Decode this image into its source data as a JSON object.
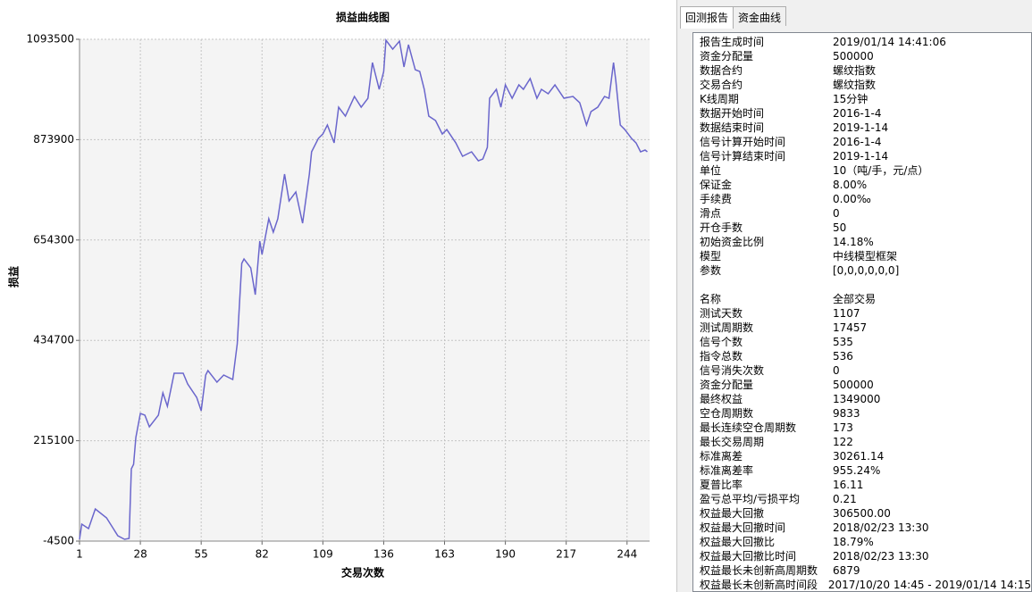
{
  "chart_data": {
    "type": "line",
    "title": "损益曲线图",
    "x_label": "交易次数",
    "y_label": "损益",
    "color": "#6a66cc",
    "grid": true,
    "xlim": [
      1,
      254
    ],
    "xticks": [
      1,
      28,
      55,
      82,
      109,
      136,
      163,
      190,
      217,
      244
    ],
    "ylim": [
      -4500,
      1093500
    ],
    "yticks": [
      -4500,
      215100,
      434700,
      654300,
      873900,
      1093500
    ],
    "x": [
      1,
      2,
      5,
      8,
      13,
      18,
      21,
      23,
      24,
      25,
      26,
      28,
      30,
      32,
      36,
      38,
      40,
      43,
      47,
      49,
      53,
      55,
      57,
      58,
      62,
      65,
      69,
      71,
      73,
      74,
      77,
      79,
      81,
      82,
      85,
      87,
      89,
      92,
      94,
      97,
      100,
      103,
      104,
      107,
      109,
      111,
      114,
      116,
      119,
      123,
      126,
      129,
      131,
      134,
      136,
      137,
      140,
      143,
      145,
      147,
      150,
      152,
      154,
      156,
      159,
      162,
      164,
      168,
      171,
      175,
      178,
      180,
      182,
      183,
      186,
      188,
      190,
      193,
      196,
      198,
      201,
      204,
      206,
      209,
      212,
      216,
      220,
      223,
      226,
      228,
      231,
      234,
      236,
      238,
      239,
      241,
      243,
      246,
      248,
      250,
      252,
      253
    ],
    "values": [
      -600,
      32600,
      22900,
      65800,
      46300,
      7200,
      -600,
      1400,
      153700,
      163500,
      222100,
      274900,
      271000,
      245600,
      271000,
      319800,
      290500,
      362800,
      362800,
      339300,
      310000,
      280700,
      358900,
      368600,
      343200,
      358900,
      349100,
      427200,
      603100,
      612800,
      593300,
      534700,
      651900,
      622600,
      700800,
      671400,
      700800,
      798400,
      739800,
      759400,
      691000,
      798400,
      847300,
      876600,
      886300,
      905900,
      866800,
      944900,
      925400,
      968400,
      944900,
      964500,
      1042600,
      984000,
      1023100,
      1091500,
      1071900,
      1089500,
      1032900,
      1081700,
      1027000,
      1023100,
      984000,
      925400,
      915600,
      886300,
      896100,
      866800,
      837500,
      847300,
      827700,
      831600,
      857000,
      964500,
      984000,
      944900,
      993800,
      964500,
      993800,
      984000,
      1007500,
      964500,
      984000,
      974300,
      993800,
      964500,
      968400,
      954700,
      905900,
      935200,
      944900,
      968400,
      964500,
      1042600,
      1003600,
      905900,
      896100,
      876600,
      866800,
      847300,
      851200,
      847300
    ]
  },
  "report": {
    "tabs": [
      "回测报告",
      "资金曲线"
    ],
    "sections": [
      [
        [
          "报告生成时间",
          "2019/01/14 14:41:06"
        ],
        [
          "资金分配量",
          "500000"
        ],
        [
          "数据合约",
          "螺纹指数"
        ],
        [
          "交易合约",
          "螺纹指数"
        ],
        [
          "K线周期",
          "15分钟"
        ],
        [
          "数据开始时间",
          "2016-1-4"
        ],
        [
          "数据结束时间",
          "2019-1-14"
        ],
        [
          "信号计算开始时间",
          "2016-1-4"
        ],
        [
          "信号计算结束时间",
          "2019-1-14"
        ],
        [
          "单位",
          "10（吨/手，元/点）"
        ],
        [
          "保证金",
          "8.00%"
        ],
        [
          "手续费",
          "0.00‰"
        ],
        [
          "滑点",
          "0"
        ],
        [
          "开仓手数",
          "50"
        ],
        [
          "初始资金比例",
          "14.18%"
        ],
        [
          "模型",
          "中线模型框架"
        ],
        [
          "参数",
          "[0,0,0,0,0,0]"
        ]
      ],
      [
        [
          "名称",
          "全部交易"
        ],
        [
          "测试天数",
          "1107"
        ],
        [
          "测试周期数",
          "17457"
        ],
        [
          "信号个数",
          "535"
        ],
        [
          "指令总数",
          "536"
        ],
        [
          "信号消失次数",
          "0"
        ],
        [
          "资金分配量",
          "500000"
        ],
        [
          "最终权益",
          "1349000"
        ],
        [
          "空仓周期数",
          "9833"
        ],
        [
          "最长连续空仓周期数",
          "173"
        ],
        [
          "最长交易周期",
          "122"
        ],
        [
          "标准离差",
          "30261.14"
        ],
        [
          "标准离差率",
          "955.24%"
        ],
        [
          "夏普比率",
          "16.11"
        ],
        [
          "盈亏总平均/亏损平均",
          "0.21"
        ],
        [
          "权益最大回撤",
          "306500.00"
        ],
        [
          "权益最大回撤时间",
          "2018/02/23 13:30"
        ],
        [
          "权益最大回撤比",
          "18.79%"
        ],
        [
          "权益最大回撤比时间",
          "2018/02/23 13:30"
        ],
        [
          "权益最长未创新高周期数",
          "6879"
        ],
        [
          "权益最长未创新高时间段",
          "2017/10/20 14:45 - 2019/01/14 14:15"
        ]
      ]
    ]
  }
}
